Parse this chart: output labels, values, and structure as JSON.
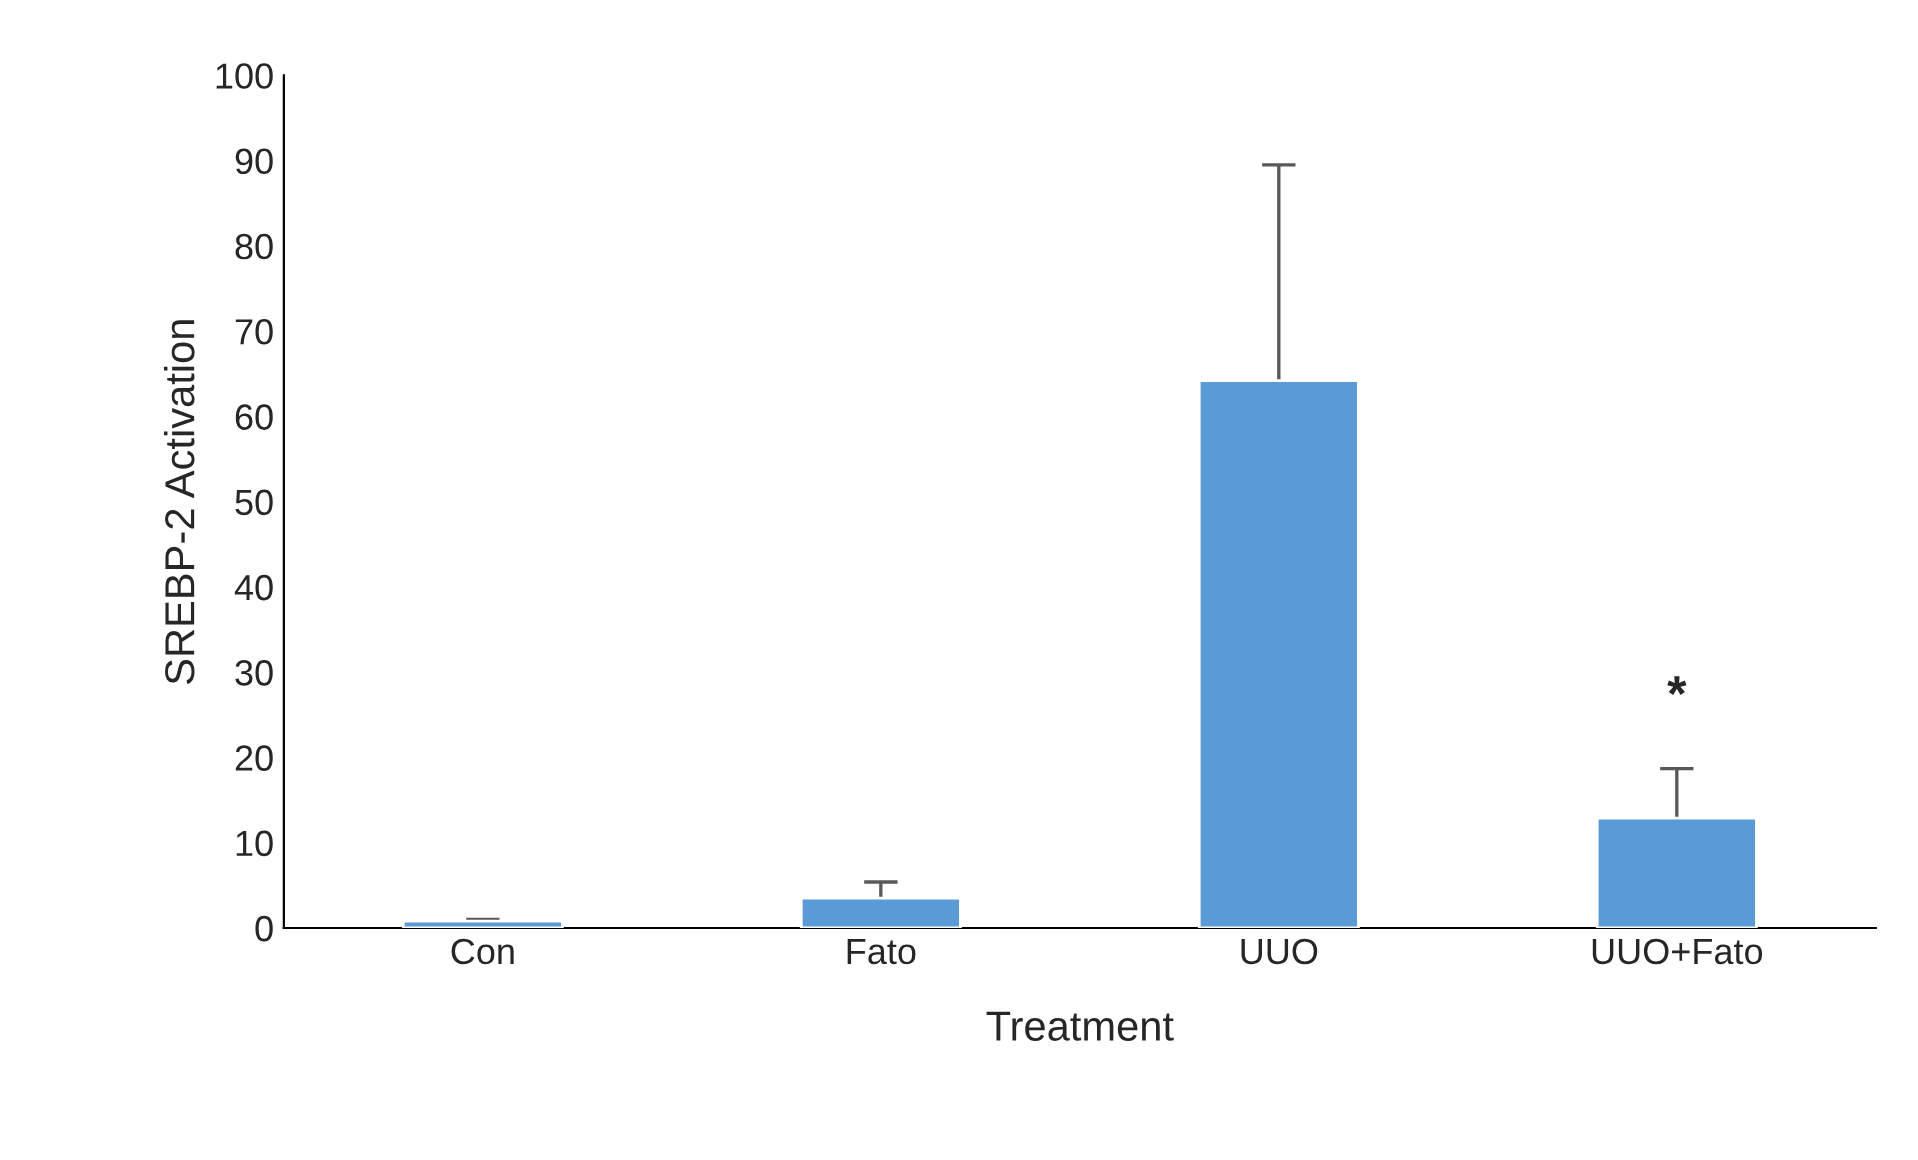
{
  "chart_data": {
    "type": "bar",
    "xlabel": "Treatment",
    "ylabel": "SREBP-2 Activation",
    "categories": [
      "Con",
      "Fato",
      "UUO",
      "UUO+Fato"
    ],
    "values": [
      0.8,
      3.5,
      64.2,
      12.9
    ],
    "errors": [
      0.2,
      1.9,
      25.3,
      5.8
    ],
    "color": "#5b9bd5",
    "ylim": [
      0,
      100
    ],
    "yticks": [
      0,
      10,
      20,
      30,
      40,
      50,
      60,
      70,
      80,
      90,
      100
    ],
    "grid": false,
    "annotations": [
      "*"
    ]
  }
}
